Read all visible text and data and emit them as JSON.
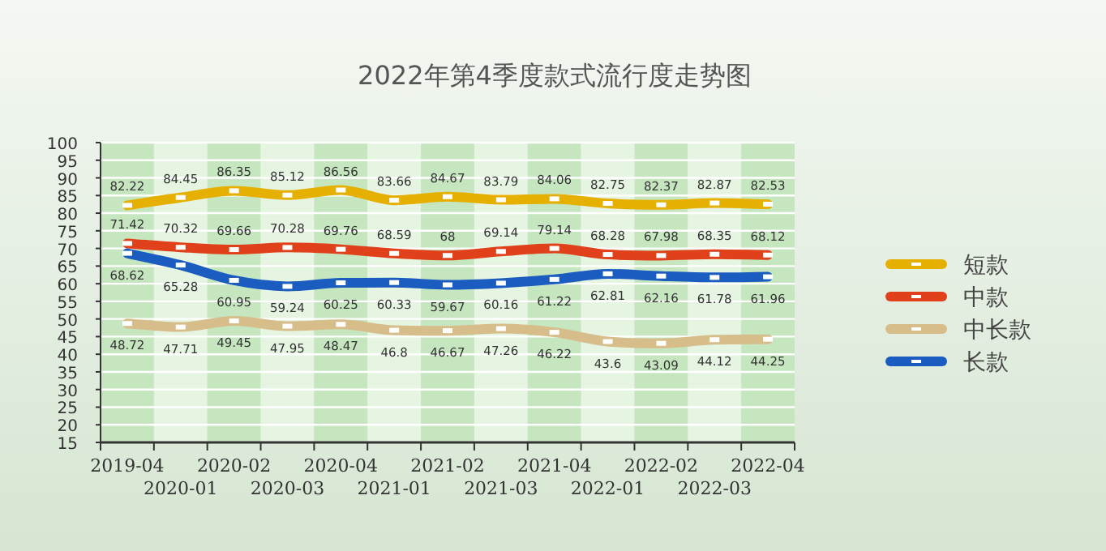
{
  "chart_data": {
    "type": "line",
    "title": "2022年第4季度款式流行度走势图",
    "categories": [
      "2019-04",
      "2020-01",
      "2020-02",
      "2020-03",
      "2020-04",
      "2021-01",
      "2021-02",
      "2021-03",
      "2021-04",
      "2022-01",
      "2022-02",
      "2022-03",
      "2022-04"
    ],
    "series": [
      {
        "name": "短款",
        "color": "#e6b000",
        "values": [
          82.22,
          84.45,
          86.35,
          85.12,
          86.56,
          83.66,
          84.67,
          83.79,
          84.06,
          82.75,
          82.37,
          82.87,
          82.53
        ],
        "value_labels": [
          "82.22",
          "84.45",
          "86.35",
          "85.12",
          "86.56",
          "83.66",
          "84.67",
          "83.79",
          "84.06",
          "82.75",
          "82.37",
          "82.87",
          "82.53"
        ]
      },
      {
        "name": "中款",
        "color": "#e0401a",
        "values": [
          71.42,
          70.32,
          69.66,
          70.28,
          69.76,
          68.59,
          68,
          69.14,
          70,
          68.28,
          67.98,
          68.35,
          68.12
        ],
        "value_labels": [
          "71.42",
          "70.32",
          "69.66",
          "70.28",
          "69.76",
          "68.59",
          "68",
          "69.14",
          null,
          "68.28",
          "67.98",
          "68.35",
          "68.12"
        ]
      },
      {
        "name": "中长款",
        "color": "#d6bd8a",
        "values": [
          48.72,
          47.71,
          49.45,
          47.95,
          48.47,
          46.8,
          46.67,
          47.26,
          46.22,
          43.6,
          43.09,
          44.12,
          44.25
        ],
        "value_labels": [
          "48.72",
          "47.71",
          "49.45",
          "47.95",
          "48.47",
          "46.8",
          "46.67",
          "47.26",
          "46.22",
          "43.6",
          "43.09",
          "44.12",
          "44.25"
        ]
      },
      {
        "name": "长款",
        "color": "#1a5cc0",
        "values": [
          68.62,
          65.28,
          60.95,
          59.24,
          60.25,
          60.33,
          59.67,
          60.16,
          61.22,
          62.81,
          62.16,
          61.78,
          61.96
        ],
        "value_labels": [
          "68.62",
          "65.28",
          "60.95",
          "59.24",
          "60.25",
          "60.33",
          "59.67",
          "60.16",
          "61.22",
          "62.81",
          "62.16",
          "61.78",
          "61.96"
        ]
      }
    ],
    "ylim": [
      15,
      100
    ],
    "yticks": [
      15,
      20,
      25,
      30,
      35,
      40,
      45,
      50,
      55,
      60,
      65,
      70,
      75,
      80,
      85,
      90,
      95,
      100
    ],
    "annotations": [
      {
        "text": "79.14",
        "x": "2021-04",
        "y": 70
      }
    ],
    "grid": "y",
    "legend": "right",
    "marker": "square",
    "line_style": "solid"
  }
}
